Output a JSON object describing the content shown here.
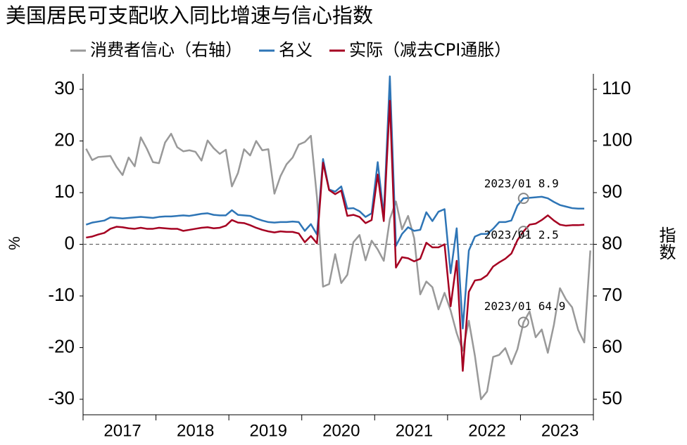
{
  "chart_data": {
    "type": "line",
    "title": "美国居民可支配收入同比增速与信心指数",
    "y_label": "%",
    "y2_label": "指数",
    "categories": [
      null,
      null,
      null,
      null,
      null,
      null,
      "2017",
      null,
      null,
      null,
      null,
      null,
      null,
      null,
      null,
      null,
      null,
      null,
      "2018",
      null,
      null,
      null,
      null,
      null,
      null,
      null,
      null,
      null,
      null,
      null,
      "2019",
      null,
      null,
      null,
      null,
      null,
      null,
      null,
      null,
      null,
      null,
      null,
      "2020",
      null,
      null,
      null,
      null,
      null,
      null,
      null,
      null,
      null,
      null,
      null,
      "2021",
      null,
      null,
      null,
      null,
      null,
      null,
      null,
      null,
      null,
      null,
      null,
      "2022",
      null,
      null,
      null,
      null,
      null,
      null,
      null,
      null,
      null,
      null,
      null,
      "2023",
      null,
      null,
      null,
      null,
      null
    ],
    "series": [
      {
        "name": "消费者信心（右轴）",
        "color": "#999999",
        "axis": "y2",
        "values": [
          98.5,
          96.3,
          96.9,
          97.0,
          97.1,
          95.0,
          93.4,
          96.8,
          95.1,
          100.7,
          98.5,
          95.9,
          95.7,
          99.7,
          101.4,
          98.8,
          98.0,
          98.2,
          97.9,
          96.2,
          100.1,
          98.6,
          97.5,
          98.3,
          91.2,
          93.8,
          98.4,
          97.2,
          100.0,
          98.2,
          98.4,
          89.8,
          93.2,
          95.5,
          96.8,
          99.3,
          99.8,
          101.0,
          89.1,
          71.8,
          72.3,
          78.1,
          72.5,
          74.1,
          80.4,
          81.8,
          76.9,
          80.7,
          79.0,
          76.8,
          84.9,
          88.3,
          82.9,
          85.5,
          81.2,
          70.3,
          72.8,
          71.7,
          67.4,
          70.6,
          67.2,
          62.8,
          59.4,
          65.2,
          58.4,
          50.0,
          51.5,
          58.2,
          58.6,
          59.9,
          56.8,
          59.7,
          64.9,
          67.0,
          62.0,
          63.5,
          59.0,
          64.4,
          71.5,
          69.3,
          67.8,
          63.4,
          61.0,
          78.8
        ]
      },
      {
        "name": "名义",
        "color": "#2e75b6",
        "values": [
          3.8,
          4.2,
          4.4,
          4.6,
          5.2,
          5.1,
          5.0,
          5.1,
          5.2,
          5.3,
          5.2,
          5.1,
          5.3,
          5.4,
          5.4,
          5.5,
          5.6,
          5.5,
          5.7,
          5.9,
          6.0,
          5.7,
          5.6,
          5.6,
          6.6,
          5.7,
          5.6,
          5.5,
          5.0,
          4.6,
          4.3,
          4.2,
          4.3,
          4.3,
          4.4,
          4.3,
          2.6,
          3.9,
          1.9,
          16.5,
          10.6,
          10.2,
          11.2,
          6.9,
          7.0,
          6.4,
          5.3,
          6.0,
          15.9,
          5.5,
          32.5,
          -0.3,
          2.0,
          3.3,
          2.6,
          2.8,
          6.2,
          4.5,
          6.3,
          6.8,
          -5.6,
          3.1,
          -16.3,
          -1.2,
          1.5,
          2.0,
          2.0,
          3.0,
          4.3,
          4.3,
          4.6,
          7.5,
          8.9,
          9.0,
          9.1,
          9.2,
          8.9,
          8.2,
          7.6,
          7.3,
          7.0,
          6.9,
          6.9,
          null
        ]
      },
      {
        "name": "实际（减去CPI通胀）",
        "color": "#a50021",
        "values": [
          1.3,
          1.5,
          1.9,
          2.2,
          3.0,
          3.4,
          3.3,
          3.1,
          3.0,
          3.2,
          3.0,
          3.0,
          3.2,
          3.1,
          3.0,
          3.0,
          2.6,
          2.8,
          3.0,
          3.2,
          3.3,
          3.1,
          3.2,
          3.6,
          4.7,
          4.2,
          4.1,
          3.7,
          3.2,
          2.8,
          2.5,
          2.3,
          2.5,
          2.4,
          2.4,
          2.1,
          0.4,
          1.6,
          0.2,
          15.8,
          10.5,
          9.7,
          10.4,
          5.5,
          5.7,
          5.3,
          4.1,
          4.7,
          13.5,
          4.5,
          27.8,
          -4.5,
          -2.5,
          -2.7,
          -3.3,
          -2.8,
          0.3,
          -0.6,
          -0.6,
          0.0,
          -12.0,
          -3.2,
          -24.5,
          -9.2,
          -7.0,
          -6.8,
          -6.0,
          -4.3,
          -3.5,
          -2.8,
          -1.8,
          0.8,
          2.5,
          3.8,
          4.0,
          4.7,
          5.6,
          4.6,
          3.8,
          3.6,
          3.7,
          3.7,
          3.8,
          null
        ]
      }
    ],
    "annotations": [
      "2023/01 8.9",
      "2023/01 2.5",
      "2023/01 64.9"
    ],
    "ylim": [
      -33,
      33
    ],
    "yticks": [
      -30,
      -20,
      -10,
      0,
      10,
      20,
      30
    ],
    "y2lim": [
      47,
      113
    ],
    "y2ticks": [
      50,
      60,
      70,
      80,
      90,
      100,
      110
    ],
    "zero_line": true
  }
}
